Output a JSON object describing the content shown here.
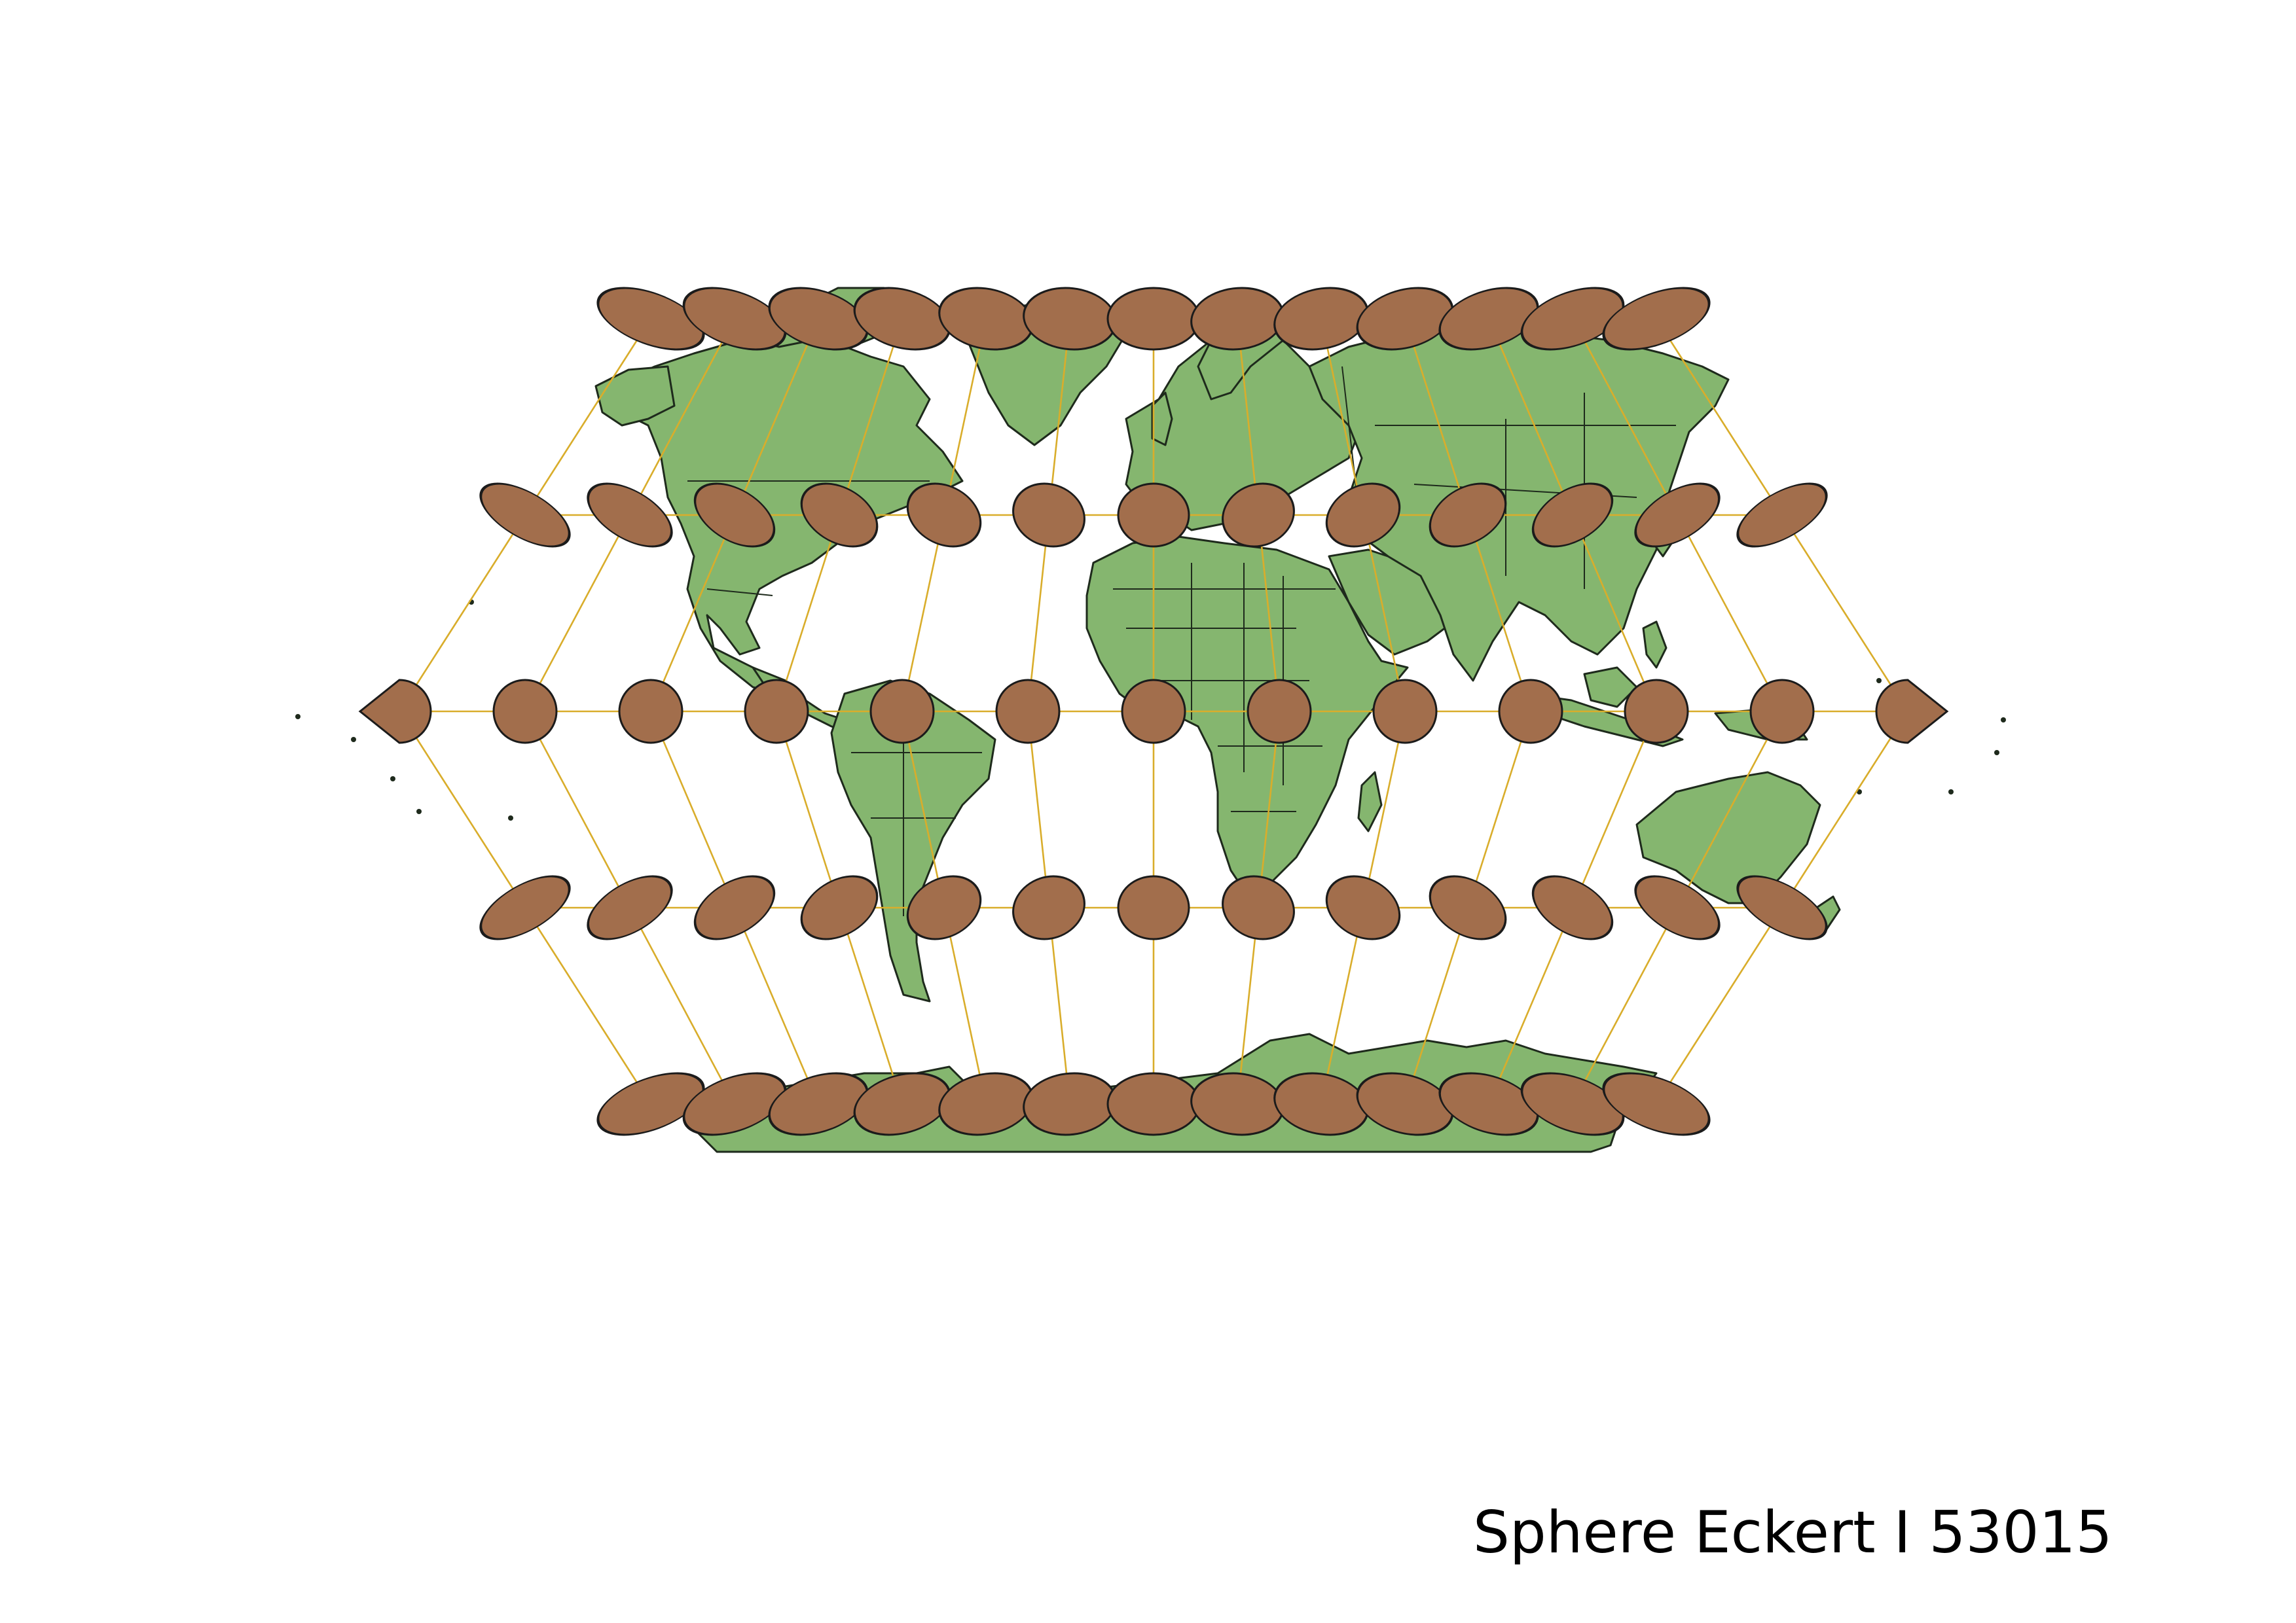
{
  "map": {
    "title": "Sphere Eckert I 53015",
    "projection": "Eckert I",
    "datum": "Sphere",
    "graticule_longitudes_deg": [
      -180,
      -150,
      -120,
      -90,
      -60,
      -30,
      0,
      30,
      60,
      90,
      120,
      150,
      180
    ],
    "graticule_latitudes_deg": [
      -60,
      -30,
      0,
      30,
      60
    ],
    "tissot_indicatrices": "shown at each graticule intersection",
    "colors": {
      "land": "#85b66f",
      "land_outline": "#1e2a1c",
      "indicatrix": "#a26e4c",
      "graticule": "#d9ad2b",
      "background": "#ffffff"
    }
  }
}
